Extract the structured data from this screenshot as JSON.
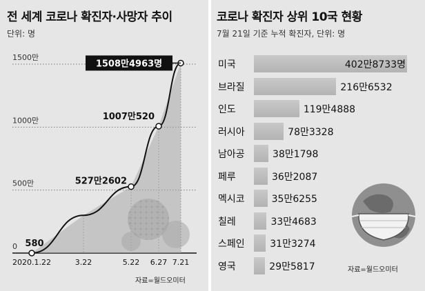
{
  "chart_data": [
    {
      "type": "area",
      "title": "전 세계 코로나 확진자·사망자 추이",
      "subtitle": "단위: 명",
      "x": [
        "2020.1.22",
        "3.22",
        "5.22",
        "6.27",
        "7.21"
      ],
      "values": [
        580,
        3000000,
        5272602,
        10070520,
        15084963
      ],
      "value_labels": [
        "580",
        "",
        "527만2602",
        "1007만520",
        "1508만4963명"
      ],
      "y_ticks": [
        "0",
        "500만",
        "1000만",
        "1500만"
      ],
      "ylim": [
        0,
        15000000
      ],
      "grid": "dotted",
      "source": "자료=월드오미터"
    },
    {
      "type": "bar",
      "orientation": "horizontal",
      "title": "코로나 확진자 상위 10국 현황",
      "subtitle": "7월 21일 기준 누적 확진자, 단위: 명",
      "categories": [
        "미국",
        "브라질",
        "인도",
        "러시아",
        "남아공",
        "페루",
        "멕시코",
        "칠레",
        "스페인",
        "영국"
      ],
      "values": [
        4028733,
        2166532,
        1194888,
        783328,
        381798,
        362087,
        356255,
        334683,
        313274,
        295817
      ],
      "value_labels": [
        "402만8733명",
        "216만6532",
        "119만4888",
        "78만3328",
        "38만1798",
        "36만2087",
        "35만6255",
        "33만4683",
        "31만3274",
        "29만5817"
      ],
      "source": "자료=월드오미터"
    }
  ]
}
